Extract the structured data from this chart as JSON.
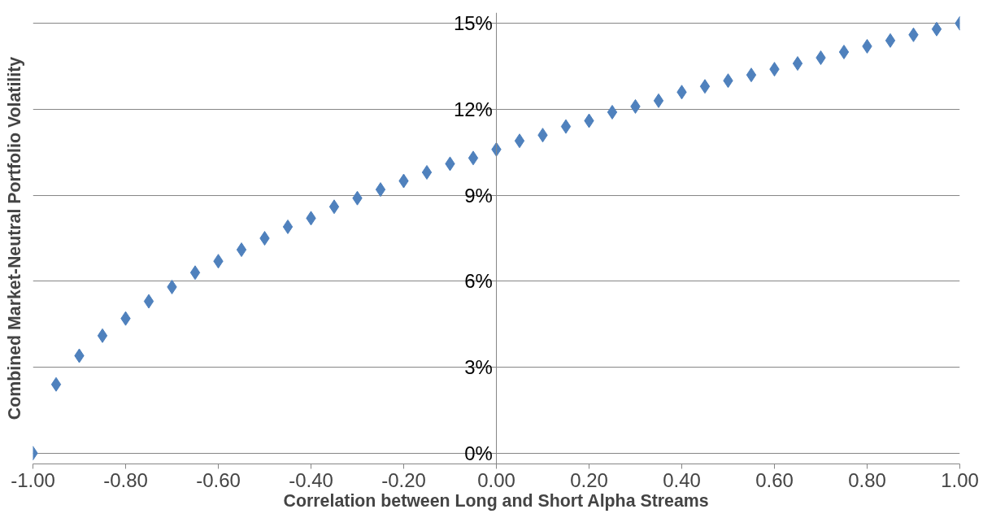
{
  "chart_data": {
    "type": "scatter",
    "xlabel": "Correlation between Long and Short Alpha Streams",
    "ylabel": "Combined Market-Neutral Portfolio Volatility",
    "x": [
      -1,
      -0.95,
      -0.9,
      -0.85,
      -0.8,
      -0.75,
      -0.7,
      -0.65,
      -0.6,
      -0.55,
      -0.5,
      -0.45,
      -0.4,
      -0.35,
      -0.3,
      -0.25,
      -0.2,
      -0.15,
      -0.1,
      -0.05,
      0,
      0.05,
      0.1,
      0.15,
      0.2,
      0.25,
      0.3,
      0.35,
      0.4,
      0.45,
      0.5,
      0.55,
      0.6,
      0.65,
      0.7,
      0.75,
      0.8,
      0.85,
      0.9,
      0.95,
      1
    ],
    "series": [
      {
        "color": "#4f81bd",
        "values": [
          0,
          2.4,
          3.4,
          4.1,
          4.7,
          5.3,
          5.8,
          6.3,
          6.7,
          7.1,
          7.5,
          7.9,
          8.2,
          8.6,
          8.9,
          9.2,
          9.5,
          9.8,
          10.1,
          10.3,
          10.6,
          10.9,
          11.1,
          11.4,
          11.6,
          11.9,
          12.1,
          12.3,
          12.6,
          12.8,
          13.0,
          13.2,
          13.4,
          13.6,
          13.8,
          14.0,
          14.2,
          14.4,
          14.6,
          14.8,
          15
        ]
      }
    ],
    "marker": "diamond",
    "grid": "y",
    "xlim": [
      -1,
      1
    ],
    "xticks": [
      {
        "value": -1,
        "label": "-1.00"
      },
      {
        "value": -0.8,
        "label": "-0.80"
      },
      {
        "value": -0.6,
        "label": "-0.60"
      },
      {
        "value": -0.4,
        "label": "-0.40"
      },
      {
        "value": -0.2,
        "label": "-0.20"
      },
      {
        "value": 0,
        "label": "0.00"
      },
      {
        "value": 0.2,
        "label": "0.20"
      },
      {
        "value": 0.4,
        "label": "0.40"
      },
      {
        "value": 0.6,
        "label": "0.60"
      },
      {
        "value": 0.8,
        "label": "0.80"
      },
      {
        "value": 1,
        "label": "1.00"
      }
    ],
    "ylim": [
      0,
      15
    ],
    "yticks": [
      {
        "value": 0,
        "label": "0%"
      },
      {
        "value": 3,
        "label": "3%"
      },
      {
        "value": 6,
        "label": "6%"
      },
      {
        "value": 9,
        "label": "9%"
      },
      {
        "value": 12,
        "label": "12%"
      },
      {
        "value": 15,
        "label": "15%"
      }
    ]
  }
}
